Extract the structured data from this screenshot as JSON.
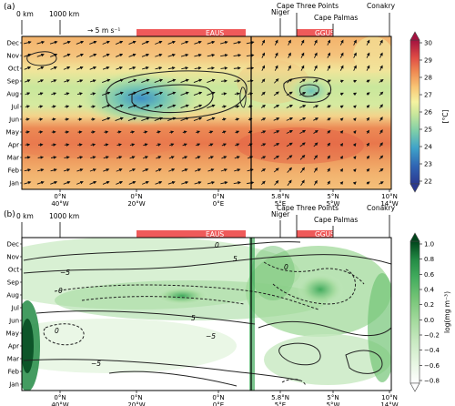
{
  "figure": {
    "panel_a_label": "(a)",
    "panel_b_label": "(b)",
    "scale_0": "0 km",
    "scale_1000": "1000 km",
    "wind_ref": "→ 5 m s⁻¹",
    "regions": [
      "EAUS",
      "GGUS"
    ],
    "places": [
      "Niger",
      "Cape Three Points",
      "Cape Palmas",
      "Conakry"
    ]
  },
  "chart_data": [
    {
      "type": "heatmap",
      "title": "",
      "panel": "(a)",
      "y_categories": [
        "Dec",
        "Nov",
        "Oct",
        "Sep",
        "Aug",
        "Jul",
        "Jun",
        "May",
        "Apr",
        "Mar",
        "Feb",
        "Jan"
      ],
      "x_tick_top": [
        "0°N",
        "0°N",
        "0°N",
        "5.8°N",
        "5°N",
        "10°N"
      ],
      "x_tick_bottom": [
        "40°W",
        "20°W",
        "0°E",
        "5°E",
        "5°W",
        "14°W"
      ],
      "colorbar": {
        "label": "[°C]",
        "min": 22,
        "max": 30,
        "ticks": [
          30,
          29,
          28,
          27,
          26,
          25,
          24,
          23,
          22
        ],
        "colors": [
          "#2b3990",
          "#2f63b3",
          "#3fa3c9",
          "#7fcfa8",
          "#c6e69b",
          "#f5f2a0",
          "#f9c776",
          "#ef8a52",
          "#df4b45",
          "#b5133f",
          "#8a0f3f"
        ]
      },
      "annotations": [
        "warm band Mar–May",
        "cold tongue Jul–Sep near 15°W",
        "vectors: surface wind"
      ]
    },
    {
      "type": "heatmap",
      "title": "",
      "panel": "(b)",
      "y_categories": [
        "Dec",
        "Nov",
        "Oct",
        "Sep",
        "Aug",
        "Jul",
        "Jun",
        "May",
        "Apr",
        "Mar",
        "Feb",
        "Jan"
      ],
      "x_tick_top": [
        "0°N",
        "0°N",
        "0°N",
        "5.8°N",
        "5°N",
        "10°N"
      ],
      "x_tick_bottom": [
        "40°W",
        "20°W",
        "0°E",
        "5°E",
        "5°W",
        "14°W"
      ],
      "colorbar": {
        "label": "log(mg m⁻³)",
        "min": -0.8,
        "max": 1.0,
        "ticks": [
          "1.0",
          "0.8",
          "0.6",
          "0.4",
          "0.2",
          "0.0",
          "−0.2",
          "−0.4",
          "−0.6",
          "−0.8"
        ],
        "colors": [
          "#ffffff",
          "#e5f5e0",
          "#c7e9c0",
          "#a1d99b",
          "#74c476",
          "#41ab5d",
          "#238b45",
          "#006d2c",
          "#00441b"
        ]
      },
      "contour_labels": [
        "0",
        "5",
        "0",
        "−5",
        "5",
        "0",
        "−5",
        "0",
        "−5"
      ]
    }
  ]
}
